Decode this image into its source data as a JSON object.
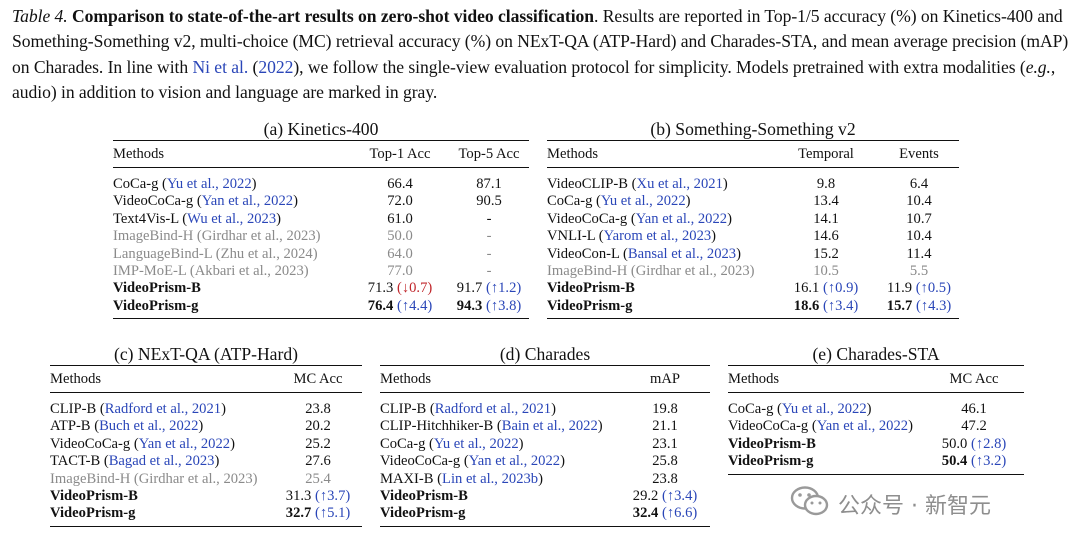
{
  "caption": {
    "label": "Table 4.",
    "title": "Comparison to state-of-the-art results on zero-shot video classification",
    "text1": ". Results are reported in Top-1/5 accuracy (%) on Kinetics-400 and Something-Something v2, multi-choice (MC) retrieval accuracy (%) on NExT-QA (ATP-Hard) and Charades-STA, and mean average precision (mAP) on Charades. In line with ",
    "cite": "Ni et al.",
    "text2": " (",
    "year": "2022",
    "text3": "), we follow the single-view evaluation protocol for simplicity. Models pretrained with extra modalities (",
    "eg": "e.g.",
    "text4": ", audio) in addition to vision and language are marked in gray."
  },
  "tables": [
    {
      "title": "(a) Kinetics-400",
      "headers": [
        "Methods",
        "Top-1 Acc",
        "Top-5 Acc"
      ],
      "rows": [
        {
          "name": "CoCa-g",
          "cite": "Yu et al., 2022",
          "style": "normal",
          "cells": [
            {
              "v": "66.4"
            },
            {
              "v": "87.1"
            }
          ]
        },
        {
          "name": "VideoCoCa-g",
          "cite": "Yan et al., 2022",
          "style": "normal",
          "cells": [
            {
              "v": "72.0"
            },
            {
              "v": "90.5"
            }
          ]
        },
        {
          "name": "Text4Vis-L",
          "cite": "Wu et al., 2023",
          "style": "normal",
          "cells": [
            {
              "v": "61.0"
            },
            {
              "v": "-"
            }
          ]
        },
        {
          "name": "ImageBind-H",
          "cite": "Girdhar et al., 2023",
          "style": "gray",
          "cells": [
            {
              "v": "50.0"
            },
            {
              "v": "-"
            }
          ]
        },
        {
          "name": "LanguageBind-L",
          "cite": "Zhu et al., 2024",
          "style": "gray",
          "cells": [
            {
              "v": "64.0"
            },
            {
              "v": "-"
            }
          ]
        },
        {
          "name": "IMP-MoE-L",
          "cite": "Akbari et al., 2023",
          "style": "gray",
          "cells": [
            {
              "v": "77.0"
            },
            {
              "v": "-"
            }
          ]
        },
        {
          "name": "VideoPrism-B",
          "cite": "",
          "style": "bold",
          "cells": [
            {
              "v": "71.3",
              "d": "(↓0.7)",
              "dir": "down"
            },
            {
              "v": "91.7",
              "d": "(↑1.2)",
              "dir": "up"
            }
          ]
        },
        {
          "name": "VideoPrism-g",
          "cite": "",
          "style": "bold",
          "cells": [
            {
              "v": "76.4",
              "d": "(↑4.4)",
              "dir": "up",
              "b": true
            },
            {
              "v": "94.3",
              "d": "(↑3.8)",
              "dir": "up",
              "b": true
            }
          ]
        }
      ]
    },
    {
      "title": "(b) Something-Something v2",
      "headers": [
        "Methods",
        "Temporal",
        "Events"
      ],
      "rows": [
        {
          "name": "VideoCLIP-B",
          "cite": "Xu et al., 2021",
          "style": "normal",
          "cells": [
            {
              "v": "9.8"
            },
            {
              "v": "6.4"
            }
          ]
        },
        {
          "name": "CoCa-g",
          "cite": "Yu et al., 2022",
          "style": "normal",
          "cells": [
            {
              "v": "13.4"
            },
            {
              "v": "10.4"
            }
          ]
        },
        {
          "name": "VideoCoCa-g",
          "cite": "Yan et al., 2022",
          "style": "normal",
          "cells": [
            {
              "v": "14.1"
            },
            {
              "v": "10.7"
            }
          ]
        },
        {
          "name": "VNLI-L",
          "cite": "Yarom et al., 2023",
          "style": "normal",
          "cells": [
            {
              "v": "14.6"
            },
            {
              "v": "10.4"
            }
          ]
        },
        {
          "name": "VideoCon-L",
          "cite": "Bansal et al., 2023",
          "style": "normal",
          "cells": [
            {
              "v": "15.2"
            },
            {
              "v": "11.4"
            }
          ]
        },
        {
          "name": "ImageBind-H",
          "cite": "Girdhar et al., 2023",
          "style": "gray",
          "cells": [
            {
              "v": "10.5"
            },
            {
              "v": "5.5"
            }
          ]
        },
        {
          "name": "VideoPrism-B",
          "cite": "",
          "style": "bold",
          "cells": [
            {
              "v": "16.1",
              "d": "(↑0.9)",
              "dir": "up"
            },
            {
              "v": "11.9",
              "d": "(↑0.5)",
              "dir": "up"
            }
          ]
        },
        {
          "name": "VideoPrism-g",
          "cite": "",
          "style": "bold",
          "cells": [
            {
              "v": "18.6",
              "d": "(↑3.4)",
              "dir": "up",
              "b": true
            },
            {
              "v": "15.7",
              "d": "(↑4.3)",
              "dir": "up",
              "b": true
            }
          ]
        }
      ]
    },
    {
      "title": "(c) NExT-QA (ATP-Hard)",
      "headers": [
        "Methods",
        "MC Acc"
      ],
      "rows": [
        {
          "name": "CLIP-B",
          "cite": "Radford et al., 2021",
          "style": "normal",
          "cells": [
            {
              "v": "23.8"
            }
          ]
        },
        {
          "name": "ATP-B",
          "cite": "Buch et al., 2022",
          "style": "normal",
          "cells": [
            {
              "v": "20.2"
            }
          ]
        },
        {
          "name": "VideoCoCa-g",
          "cite": "Yan et al., 2022",
          "style": "normal",
          "cells": [
            {
              "v": "25.2"
            }
          ]
        },
        {
          "name": "TACT-B",
          "cite": "Bagad et al., 2023",
          "style": "normal",
          "cells": [
            {
              "v": "27.6"
            }
          ]
        },
        {
          "name": "ImageBind-H",
          "cite": "Girdhar et al., 2023",
          "style": "gray",
          "cells": [
            {
              "v": "25.4"
            }
          ]
        },
        {
          "name": "VideoPrism-B",
          "cite": "",
          "style": "bold",
          "cells": [
            {
              "v": "31.3",
              "d": "(↑3.7)",
              "dir": "up"
            }
          ]
        },
        {
          "name": "VideoPrism-g",
          "cite": "",
          "style": "bold",
          "cells": [
            {
              "v": "32.7",
              "d": "(↑5.1)",
              "dir": "up",
              "b": true
            }
          ]
        }
      ]
    },
    {
      "title": "(d) Charades",
      "headers": [
        "Methods",
        "mAP"
      ],
      "rows": [
        {
          "name": "CLIP-B",
          "cite": "Radford et al., 2021",
          "style": "normal",
          "cells": [
            {
              "v": "19.8"
            }
          ]
        },
        {
          "name": "CLIP-Hitchhiker-B",
          "cite": "Bain et al., 2022",
          "style": "normal",
          "cells": [
            {
              "v": "21.1"
            }
          ]
        },
        {
          "name": "CoCa-g",
          "cite": "Yu et al., 2022",
          "style": "normal",
          "cells": [
            {
              "v": "23.1"
            }
          ]
        },
        {
          "name": "VideoCoCa-g",
          "cite": "Yan et al., 2022",
          "style": "normal",
          "cells": [
            {
              "v": "25.8"
            }
          ]
        },
        {
          "name": "MAXI-B",
          "cite": "Lin et al., 2023b",
          "style": "normal",
          "cells": [
            {
              "v": "23.8"
            }
          ]
        },
        {
          "name": "VideoPrism-B",
          "cite": "",
          "style": "bold",
          "cells": [
            {
              "v": "29.2",
              "d": "(↑3.4)",
              "dir": "up"
            }
          ]
        },
        {
          "name": "VideoPrism-g",
          "cite": "",
          "style": "bold",
          "cells": [
            {
              "v": "32.4",
              "d": "(↑6.6)",
              "dir": "up",
              "b": true
            }
          ]
        }
      ]
    },
    {
      "title": "(e) Charades-STA",
      "headers": [
        "Methods",
        "MC Acc"
      ],
      "rows": [
        {
          "name": "CoCa-g",
          "cite": "Yu et al., 2022",
          "style": "normal",
          "cells": [
            {
              "v": "46.1"
            }
          ]
        },
        {
          "name": "VideoCoCa-g",
          "cite": "Yan et al., 2022",
          "style": "normal",
          "cells": [
            {
              "v": "47.2"
            }
          ]
        },
        {
          "name": "VideoPrism-B",
          "cite": "",
          "style": "bold",
          "cells": [
            {
              "v": "50.0",
              "d": "(↑2.8)",
              "dir": "up"
            }
          ]
        },
        {
          "name": "VideoPrism-g",
          "cite": "",
          "style": "bold",
          "cells": [
            {
              "v": "50.4",
              "d": "(↑3.2)",
              "dir": "up",
              "b": true
            }
          ]
        }
      ]
    }
  ],
  "watermark": {
    "text": "公众号 · 新智元",
    "icon": "wechat-icon",
    "color": "#8e8e8e"
  },
  "colors": {
    "cite": "#2a46b8",
    "down": "#c0262b",
    "gray": "#8a8a8a"
  }
}
